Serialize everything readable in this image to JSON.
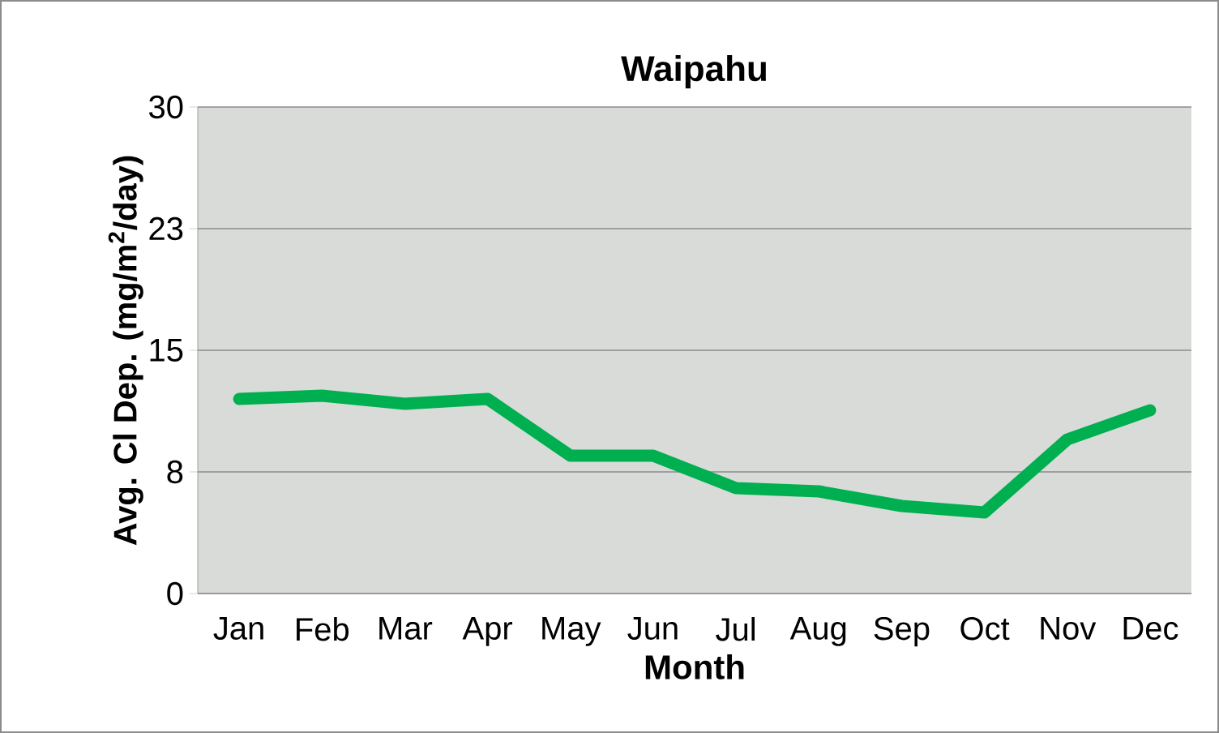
{
  "chart_data": {
    "type": "line",
    "title": "Waipahu",
    "xlabel": "Month",
    "ylabel": "Avg. Cl Dep. (mg/m$^{2}$/day)",
    "categories": [
      "Jan",
      "Feb",
      "Mar",
      "Apr",
      "May",
      "Jun",
      "Jul",
      "Aug",
      "Sep",
      "Oct",
      "Nov",
      "Dec"
    ],
    "series": [
      {
        "color": "#00b050",
        "values": [
          12.0,
          12.2,
          11.7,
          12.0,
          8.5,
          8.5,
          6.5,
          6.3,
          5.4,
          5.0,
          9.5,
          11.3
        ]
      }
    ],
    "ylim": [
      0,
      30
    ],
    "yticks": [
      0,
      {
        "value": 7.5,
        "label": "8"
      },
      15,
      {
        "value": 22.5,
        "label": "23"
      },
      30
    ],
    "grid": "y",
    "line_style": "solid"
  }
}
